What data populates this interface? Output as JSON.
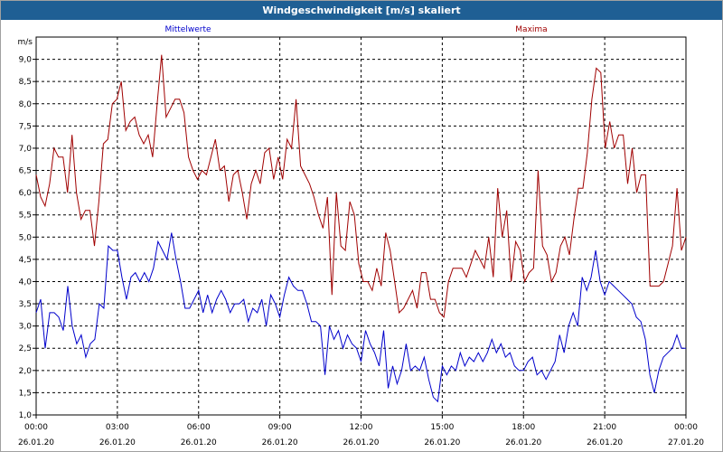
{
  "window": {
    "title": "Windgeschwindigkeit [m/s] skaliert"
  },
  "colors": {
    "series1": "#0000cc",
    "series2": "#a00000",
    "titlebar": "#1f5f94"
  },
  "chart_data": {
    "type": "line",
    "title": "Windgeschwindigkeit [m/s] skaliert",
    "ylabel": "m/s",
    "ylim": [
      1.0,
      9.5
    ],
    "yticks": [
      "1,0",
      "1,5",
      "2,0",
      "2,5",
      "3,0",
      "3,5",
      "4,0",
      "4,5",
      "5,0",
      "5,5",
      "6,0",
      "6,5",
      "7,0",
      "7,5",
      "8,0",
      "8,5",
      "9,0"
    ],
    "xlim": [
      0,
      24
    ],
    "xticks": [
      {
        "time": "00:00",
        "date": "26.01.20"
      },
      {
        "time": "03:00",
        "date": "26.01.20"
      },
      {
        "time": "06:00",
        "date": "26.01.20"
      },
      {
        "time": "09:00",
        "date": "26.01.20"
      },
      {
        "time": "12:00",
        "date": "26.01.20"
      },
      {
        "time": "15:00",
        "date": "26.01.20"
      },
      {
        "time": "18:00",
        "date": "26.01.20"
      },
      {
        "time": "21:00",
        "date": "26.01.20"
      },
      {
        "time": "00:00",
        "date": "27.01.20"
      }
    ],
    "grid": true,
    "series": [
      {
        "name": "Mittelwerte",
        "values": [
          3.3,
          3.6,
          2.5,
          3.3,
          3.3,
          3.2,
          2.9,
          3.9,
          3.0,
          2.6,
          2.8,
          2.3,
          2.6,
          2.7,
          3.5,
          3.4,
          4.8,
          4.7,
          4.7,
          4.1,
          3.6,
          4.1,
          4.2,
          4.0,
          4.2,
          4.0,
          4.3,
          4.9,
          4.7,
          4.5,
          5.1,
          4.5,
          4.0,
          3.4,
          3.4,
          3.6,
          3.8,
          3.3,
          3.7,
          3.3,
          3.6,
          3.8,
          3.6,
          3.3,
          3.5,
          3.5,
          3.6,
          3.1,
          3.4,
          3.3,
          3.6,
          3.0,
          3.7,
          3.5,
          3.2,
          3.7,
          4.1,
          3.9,
          3.8,
          3.8,
          3.5,
          3.1,
          3.1,
          3.0,
          1.9,
          3.0,
          2.7,
          2.9,
          2.5,
          2.8,
          2.6,
          2.5,
          2.2,
          2.9,
          2.6,
          2.4,
          2.1,
          2.9,
          1.6,
          2.1,
          1.7,
          2.0,
          2.6,
          2.0,
          2.1,
          2.0,
          2.3,
          1.8,
          1.4,
          1.3,
          2.1,
          1.9,
          2.1,
          2.0,
          2.4,
          2.1,
          2.3,
          2.2,
          2.4,
          2.2,
          2.4,
          2.7,
          2.4,
          2.6,
          2.3,
          2.4,
          2.1,
          2.0,
          2.0,
          2.2,
          2.3,
          1.9,
          2.0,
          1.8,
          2.0,
          2.2,
          2.8,
          2.4,
          3.0,
          3.3,
          3.0,
          4.1,
          3.8,
          4.1,
          4.7,
          4.0,
          3.7,
          4.0,
          3.9,
          3.8,
          3.7,
          3.6,
          3.5,
          3.2,
          3.1,
          2.7,
          1.9,
          1.5,
          2.0,
          2.3,
          2.4,
          2.5,
          2.8,
          2.5,
          2.5
        ]
      },
      {
        "name": "Maxima",
        "values": [
          6.4,
          5.9,
          5.7,
          6.2,
          7.0,
          6.8,
          6.8,
          6.0,
          7.3,
          6.0,
          5.4,
          5.6,
          5.6,
          4.8,
          5.8,
          7.1,
          7.2,
          8.0,
          8.1,
          8.5,
          7.4,
          7.6,
          7.7,
          7.3,
          7.1,
          7.3,
          6.8,
          8.0,
          9.1,
          7.7,
          7.9,
          8.1,
          8.1,
          7.8,
          6.8,
          6.5,
          6.3,
          6.5,
          6.4,
          6.8,
          7.2,
          6.5,
          6.6,
          5.8,
          6.4,
          6.5,
          6.0,
          5.4,
          6.2,
          6.5,
          6.2,
          6.9,
          7.0,
          6.3,
          6.8,
          6.3,
          7.2,
          7.0,
          8.1,
          6.6,
          6.4,
          6.2,
          5.9,
          5.5,
          5.2,
          5.9,
          3.7,
          6.0,
          4.8,
          4.7,
          5.8,
          5.5,
          4.4,
          4.0,
          4.0,
          3.8,
          4.3,
          3.9,
          5.1,
          4.7,
          4.0,
          3.3,
          3.4,
          3.6,
          3.8,
          3.4,
          4.2,
          4.2,
          3.6,
          3.6,
          3.3,
          3.2,
          4.0,
          4.3,
          4.3,
          4.3,
          4.1,
          4.4,
          4.7,
          4.5,
          4.3,
          5.0,
          4.1,
          6.1,
          5.0,
          5.6,
          4.0,
          4.9,
          4.7,
          4.0,
          4.2,
          4.3,
          6.5,
          4.8,
          4.6,
          4.0,
          4.2,
          4.8,
          5.0,
          4.6,
          5.4,
          6.1,
          6.1,
          6.9,
          8.1,
          8.8,
          8.7,
          7.0,
          7.6,
          7.0,
          7.3,
          7.3,
          6.2,
          7.0,
          6.0,
          6.4,
          6.4,
          3.9,
          3.9,
          3.9,
          4.0,
          4.4,
          4.8,
          6.1,
          4.7,
          5.0
        ]
      }
    ]
  }
}
